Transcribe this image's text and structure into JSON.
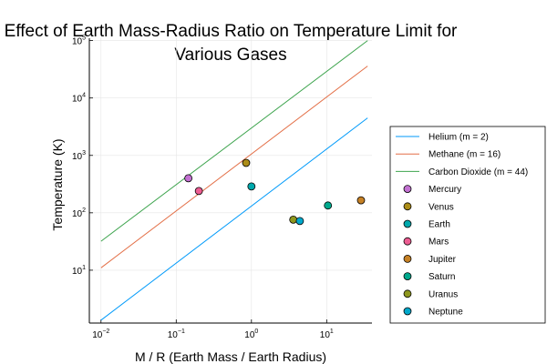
{
  "chart_data": {
    "type": "scatter",
    "title_lines": [
      "Effect of Earth Mass-Radius Ratio on Temperature Limit for",
      "Various Gases"
    ],
    "xlabel": "M / R (Earth Mass / Earth Radius)",
    "ylabel": "Temperature (K)",
    "xscale": "log",
    "yscale": "log",
    "xlim": [
      0.007,
      40
    ],
    "ylim": [
      1.2,
      110000
    ],
    "grid": true,
    "legend_position": "right",
    "x_ticks": [
      {
        "value": 0.01,
        "base": "10",
        "exp": "−2"
      },
      {
        "value": 0.1,
        "base": "10",
        "exp": "−1"
      },
      {
        "value": 1,
        "base": "10",
        "exp": "0"
      },
      {
        "value": 10,
        "base": "10",
        "exp": "1"
      }
    ],
    "y_ticks": [
      {
        "value": 10,
        "base": "10",
        "exp": "1"
      },
      {
        "value": 100,
        "base": "10",
        "exp": "2"
      },
      {
        "value": 1000,
        "base": "10",
        "exp": "3"
      },
      {
        "value": 10000,
        "base": "10",
        "exp": "4"
      },
      {
        "value": 100000,
        "base": "10",
        "exp": "5"
      }
    ],
    "lines": [
      {
        "name": "Helium (m = 2)",
        "color": "#009AFA",
        "x": [
          0.01,
          35
        ],
        "y": [
          1.35,
          4500
        ]
      },
      {
        "name": "Methane (m = 16)",
        "color": "#E36F47",
        "x": [
          0.01,
          35
        ],
        "y": [
          11,
          36000
        ]
      },
      {
        "name": "Carbon Dioxide (m = 44)",
        "color": "#3EA44E",
        "x": [
          0.01,
          35
        ],
        "y": [
          32,
          100000
        ]
      }
    ],
    "points": [
      {
        "name": "Mercury",
        "color": "#C371D2",
        "x": 0.145,
        "y": 400
      },
      {
        "name": "Venus",
        "color": "#AC8D18",
        "x": 0.85,
        "y": 740
      },
      {
        "name": "Earth",
        "color": "#00A9AD",
        "x": 1.0,
        "y": 288
      },
      {
        "name": "Mars",
        "color": "#ED5D92",
        "x": 0.2,
        "y": 240
      },
      {
        "name": "Jupiter",
        "color": "#C68125",
        "x": 28.6,
        "y": 165
      },
      {
        "name": "Saturn",
        "color": "#00A98D",
        "x": 10.4,
        "y": 134
      },
      {
        "name": "Uranus",
        "color": "#8E971E",
        "x": 3.6,
        "y": 76
      },
      {
        "name": "Neptune",
        "color": "#00A8CB",
        "x": 4.4,
        "y": 72
      }
    ]
  }
}
